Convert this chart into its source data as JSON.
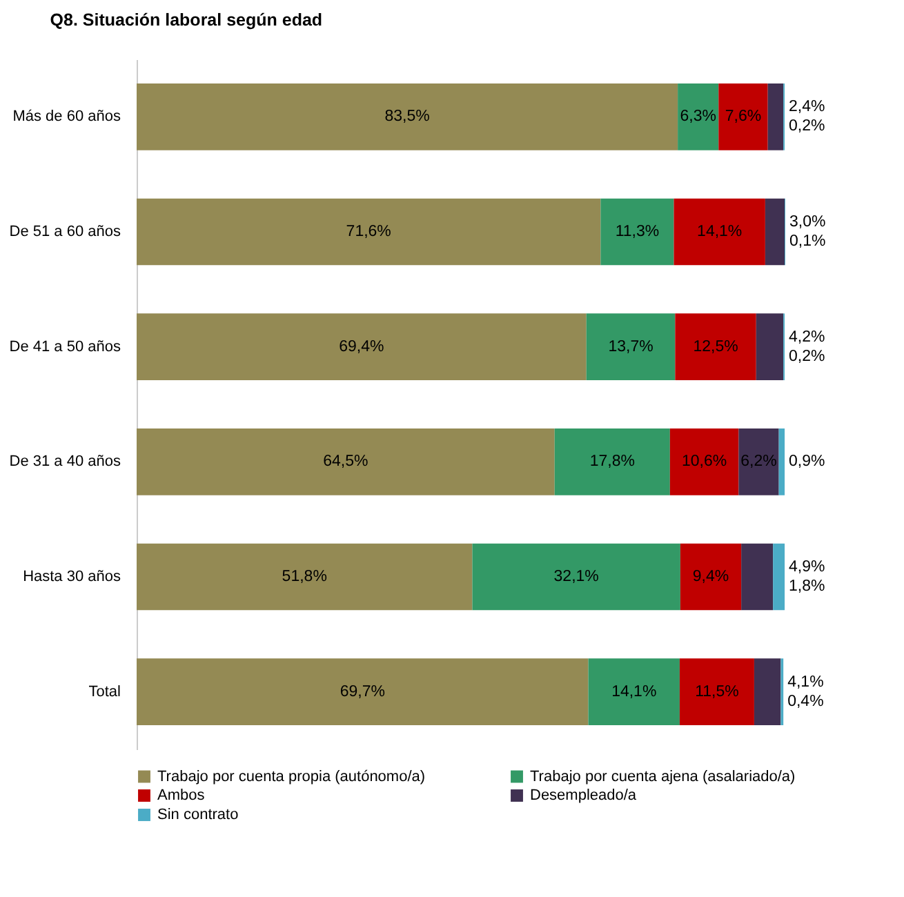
{
  "chart_data": {
    "type": "bar",
    "orientation": "horizontal",
    "stacked": true,
    "title": "Q8. Situación laboral según edad",
    "categories": [
      "Más de 60 años",
      "De 51 a 60 años",
      "De 41 a 50 años",
      "De 31 a 40 años",
      "Hasta 30 años",
      "Total"
    ],
    "series": [
      {
        "name": "Trabajo por cuenta propia (autónomo/a)",
        "color": "#948a54",
        "values": [
          83.5,
          71.6,
          69.4,
          64.5,
          51.8,
          69.7
        ],
        "value_labels": [
          "83,5%",
          "71,6%",
          "69,4%",
          "64,5%",
          "51,8%",
          "69,7%"
        ]
      },
      {
        "name": "Trabajo por cuenta ajena (asalariado/a)",
        "color": "#339966",
        "values": [
          6.3,
          11.3,
          13.7,
          17.8,
          32.1,
          14.1
        ],
        "value_labels": [
          "6,3%",
          "11,3%",
          "13,7%",
          "17,8%",
          "32,1%",
          "14,1%"
        ]
      },
      {
        "name": "Ambos",
        "color": "#c00000",
        "values": [
          7.6,
          14.1,
          12.5,
          10.6,
          9.4,
          11.5
        ],
        "value_labels": [
          "7,6%",
          "14,1%",
          "12,5%",
          "10,6%",
          "9,4%",
          "11,5%"
        ]
      },
      {
        "name": "Desempleado/a",
        "color": "#403152",
        "values": [
          2.4,
          3.0,
          4.2,
          6.2,
          4.9,
          4.1
        ],
        "value_labels": [
          "2,4%",
          "3,0%",
          "4,2%",
          "6,2%",
          "4,9%",
          "4,1%"
        ]
      },
      {
        "name": "Sin contrato",
        "color": "#4bacc6",
        "values": [
          0.2,
          0.1,
          0.2,
          0.9,
          1.8,
          0.4
        ],
        "value_labels": [
          "0,2%",
          "0,1%",
          "0,2%",
          "0,9%",
          "1,8%",
          "0,4%"
        ]
      }
    ],
    "legend": "bottom"
  }
}
